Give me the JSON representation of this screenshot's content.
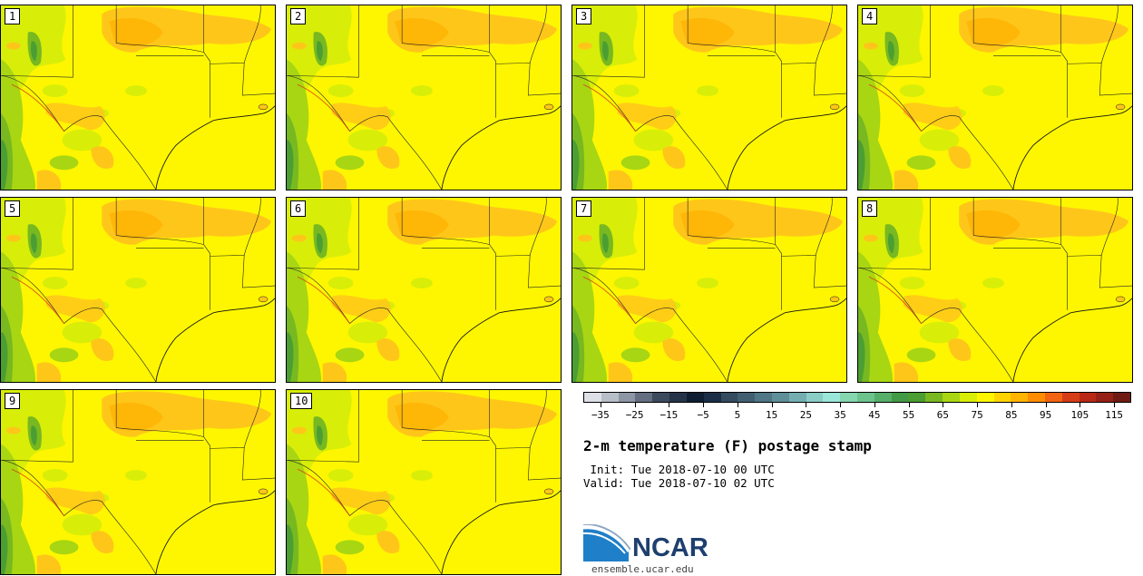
{
  "panels": [
    {
      "label": "1"
    },
    {
      "label": "2"
    },
    {
      "label": "3"
    },
    {
      "label": "4"
    },
    {
      "label": "5"
    },
    {
      "label": "6"
    },
    {
      "label": "7"
    },
    {
      "label": "8"
    },
    {
      "label": "9"
    },
    {
      "label": "10"
    }
  ],
  "colorbar": {
    "colors": [
      "#dde0e6",
      "#b8bec8",
      "#8d96a4",
      "#636e80",
      "#3c4a5e",
      "#243348",
      "#0f1d33",
      "#1c2e47",
      "#334a5f",
      "#425f72",
      "#4f7785",
      "#5f8f99",
      "#74aeb1",
      "#8acdc6",
      "#9ae6d8",
      "#86d6b0",
      "#6cc38c",
      "#55ae6a",
      "#439a46",
      "#4a9e32",
      "#78b820",
      "#a8d612",
      "#d8ee08",
      "#fdf600",
      "#ffd300",
      "#ffb400",
      "#ff8c00",
      "#f26411",
      "#d63c16",
      "#b82814",
      "#962015",
      "#6f1b13"
    ],
    "tick_labels": [
      "−35",
      "−25",
      "−15",
      "−5",
      "5",
      "15",
      "25",
      "35",
      "45",
      "55",
      "65",
      "75",
      "85",
      "95",
      "105",
      "115"
    ],
    "range": [
      -40,
      120
    ]
  },
  "title": "2-m temperature (F) postage stamp",
  "init": " Init: Tue 2018-07-10 00 UTC",
  "valid": "Valid: Tue 2018-07-10 02 UTC",
  "logo": {
    "name": "NCAR",
    "url": "ensemble.ucar.edu"
  }
}
